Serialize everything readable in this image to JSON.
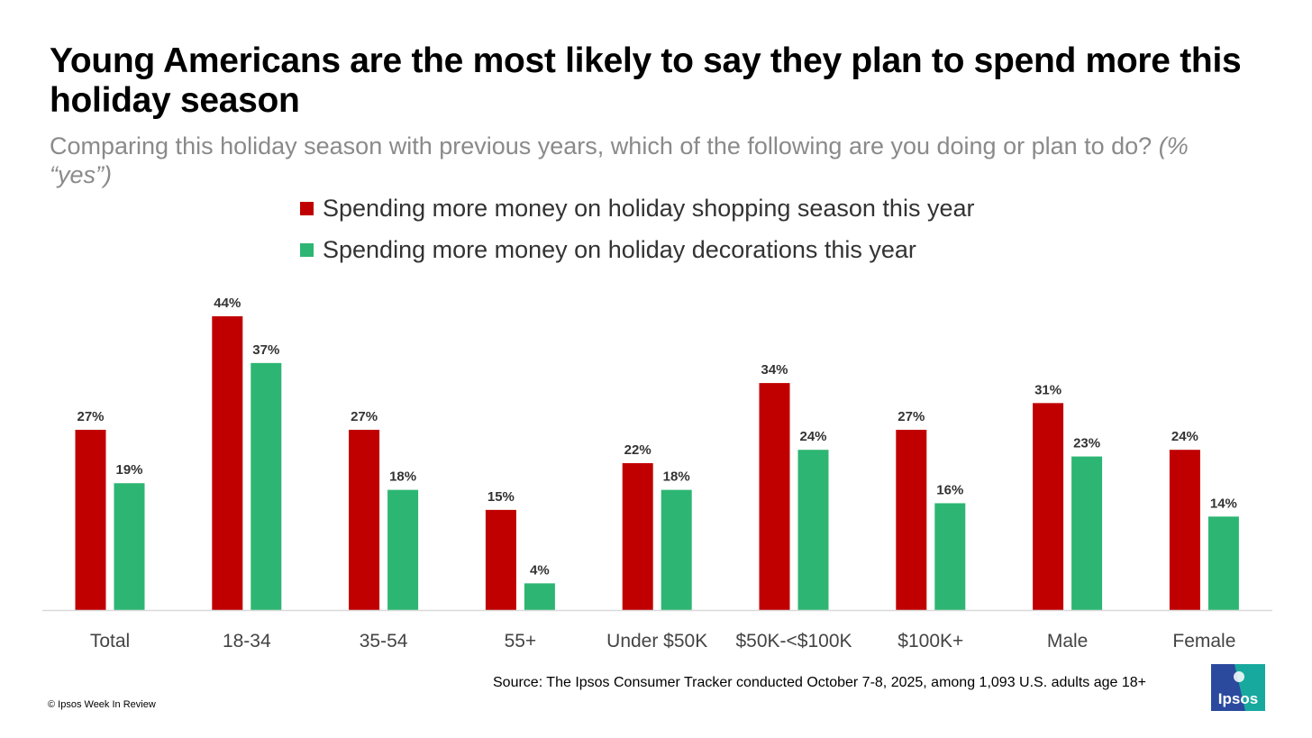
{
  "header": {
    "title": "Young Americans are the most likely to say they plan to spend more this holiday season",
    "subtitle_main": "Comparing this holiday season with previous years, which of the following are you doing or plan to do?",
    "subtitle_note": "(% “yes”)"
  },
  "chart_data": {
    "type": "bar",
    "title": "Young Americans are the most likely to say they plan to spend more this holiday season",
    "subtitle": "Comparing this holiday season with previous years, which of the following are you doing or plan to do? (% “yes”)",
    "xlabel": "",
    "ylabel": "",
    "ylim": [
      0,
      44
    ],
    "grid": false,
    "legend_position": "top-center",
    "categories": [
      "Total",
      "18-34",
      "35-54",
      "55+",
      "Under $50K",
      "$50K-<$100K",
      "$100K+",
      "Male",
      "Female"
    ],
    "series": [
      {
        "name": "Spending more money on holiday shopping season this year",
        "color": "#c00000",
        "values": [
          27,
          44,
          27,
          15,
          22,
          34,
          27,
          31,
          24
        ]
      },
      {
        "name": "Spending more money on holiday decorations this year",
        "color": "#2db673",
        "values": [
          19,
          37,
          18,
          4,
          18,
          24,
          16,
          23,
          14
        ]
      }
    ],
    "value_suffix": "%"
  },
  "footer": {
    "source": "Source: The Ipsos Consumer Tracker conducted  October 7-8, 2025, among 1,093 U.S. adults age 18+",
    "copyright": "© Ipsos Week In Review",
    "logo_text": "Ipsos"
  },
  "colors": {
    "logo_blue": "#2b4a9e",
    "logo_teal": "#18a99e",
    "axis": "#d9d9d9"
  }
}
